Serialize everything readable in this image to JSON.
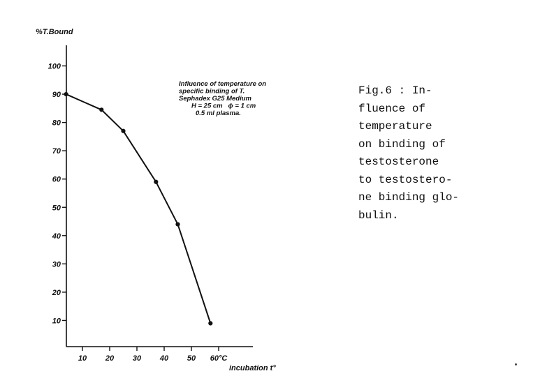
{
  "chart_data": {
    "type": "line",
    "ylabel": "%T.Bound",
    "xlabel": "incubation t°",
    "x_ticks": [
      "10",
      "20",
      "30",
      "40",
      "50",
      "60°C"
    ],
    "y_ticks": [
      "10",
      "20",
      "30",
      "40",
      "50",
      "60",
      "70",
      "80",
      "90",
      "100"
    ],
    "xlim": [
      0,
      70
    ],
    "ylim": [
      0,
      110
    ],
    "grid": false,
    "series": [
      {
        "x": [
          4,
          17,
          25,
          37,
          45,
          57
        ],
        "y": [
          90,
          84.5,
          77,
          59,
          44,
          9
        ]
      }
    ],
    "annotation": [
      "Influence of temperature on",
      "specific binding of T.",
      "Sephadex G25 Medium",
      "H = 25 cm   ϕ = 1 cm",
      "0.5 ml plasma."
    ]
  },
  "caption": {
    "lines": [
      "Fig.6 : In-",
      "fluence of",
      "temperature",
      "on binding of",
      "testosterone",
      "to testostero-",
      "ne binding glo-",
      "bulin."
    ]
  }
}
